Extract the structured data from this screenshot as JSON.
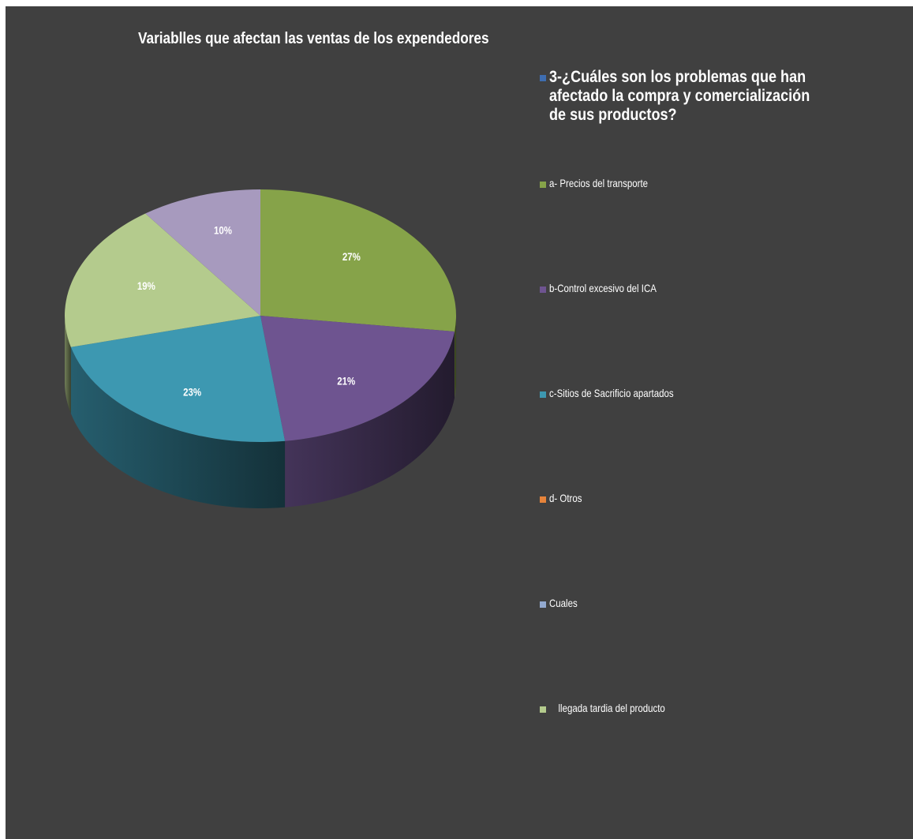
{
  "chart_data": {
    "type": "pie",
    "title": "Variablles que afectan las ventas de los expendedores",
    "legend_position": "right",
    "series_name": "3-¿Cuáles son los problemas que han afectado la compra y comercialización de sus productos?",
    "slices": [
      {
        "label": "a- Precios del transporte",
        "value": 27,
        "display": "27%",
        "color": "#86A349"
      },
      {
        "label": "b-Control excesivo del ICA",
        "value": 21,
        "display": "21%",
        "color": "#6E5490"
      },
      {
        "label": "c-Sitios de Sacrificio apartados",
        "value": 23,
        "display": "23%",
        "color": "#3D98B1"
      },
      {
        "label": "d- Otros",
        "value": 0,
        "display": "",
        "color": "#E6833A"
      },
      {
        "label": "Cuales",
        "value": 0,
        "display": "",
        "color": "#93A9CF"
      },
      {
        "label": "     llegada tardia del producto",
        "value": 19,
        "display": "19%",
        "color": "#B4CB8D"
      },
      {
        "label": "",
        "value": 10,
        "display": "10%",
        "color": "#A79ABE"
      }
    ],
    "legend": [
      {
        "label": "3-¿Cuáles son los problemas que han afectado la compra y comercialización de sus productos?",
        "color": "#3E6DB0"
      },
      {
        "label": "a- Precios del transporte",
        "color": "#86A349"
      },
      {
        "label": "b-Control excesivo del ICA",
        "color": "#6E5490"
      },
      {
        "label": "c-Sitios de Sacrificio apartados",
        "color": "#3D98B1"
      },
      {
        "label": "d- Otros",
        "color": "#E6833A"
      },
      {
        "label": "Cuales",
        "color": "#93A9CF"
      },
      {
        "label": "llegada tardia del producto",
        "color": "#B4CB8D"
      }
    ]
  }
}
